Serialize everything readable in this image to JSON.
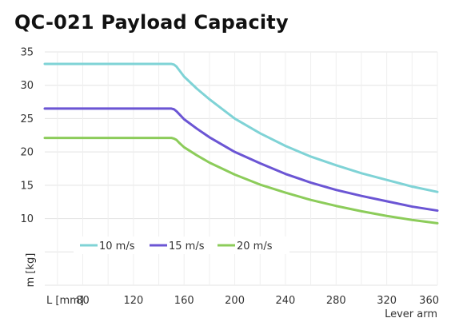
{
  "chart_data": {
    "type": "line",
    "title": "QC-021 Payload Capacity",
    "xlabel": "Lever arm",
    "x_unit_label": "L [mm]",
    "ylabel": "m [kg]",
    "xlim": [
      50,
      360
    ],
    "ylim": [
      0,
      35
    ],
    "x_ticks": [
      80,
      120,
      160,
      200,
      240,
      280,
      320,
      360
    ],
    "y_ticks": [
      10,
      15,
      20,
      25,
      30,
      35
    ],
    "grid": true,
    "legend_position": "inside-lower-left",
    "x": [
      50,
      80,
      120,
      148,
      150,
      152,
      154,
      156,
      160,
      170,
      180,
      200,
      220,
      240,
      260,
      280,
      300,
      320,
      340,
      360
    ],
    "series": [
      {
        "name": "10 m/s",
        "color": "#7fd3d6",
        "values": [
          33.2,
          33.2,
          33.2,
          33.2,
          33.2,
          33.1,
          32.8,
          32.3,
          31.3,
          29.5,
          27.9,
          25.0,
          22.8,
          20.9,
          19.3,
          18.0,
          16.8,
          15.8,
          14.8,
          14.0
        ]
      },
      {
        "name": "15 m/s",
        "color": "#6b55d4",
        "values": [
          26.5,
          26.5,
          26.5,
          26.5,
          26.5,
          26.4,
          26.1,
          25.7,
          24.9,
          23.5,
          22.2,
          20.0,
          18.3,
          16.7,
          15.4,
          14.3,
          13.4,
          12.6,
          11.8,
          11.2
        ]
      },
      {
        "name": "20 m/s",
        "color": "#8ccc5a",
        "values": [
          22.1,
          22.1,
          22.1,
          22.1,
          22.1,
          22.0,
          21.8,
          21.4,
          20.7,
          19.5,
          18.4,
          16.6,
          15.1,
          13.9,
          12.8,
          11.9,
          11.1,
          10.4,
          9.8,
          9.3
        ]
      }
    ]
  }
}
